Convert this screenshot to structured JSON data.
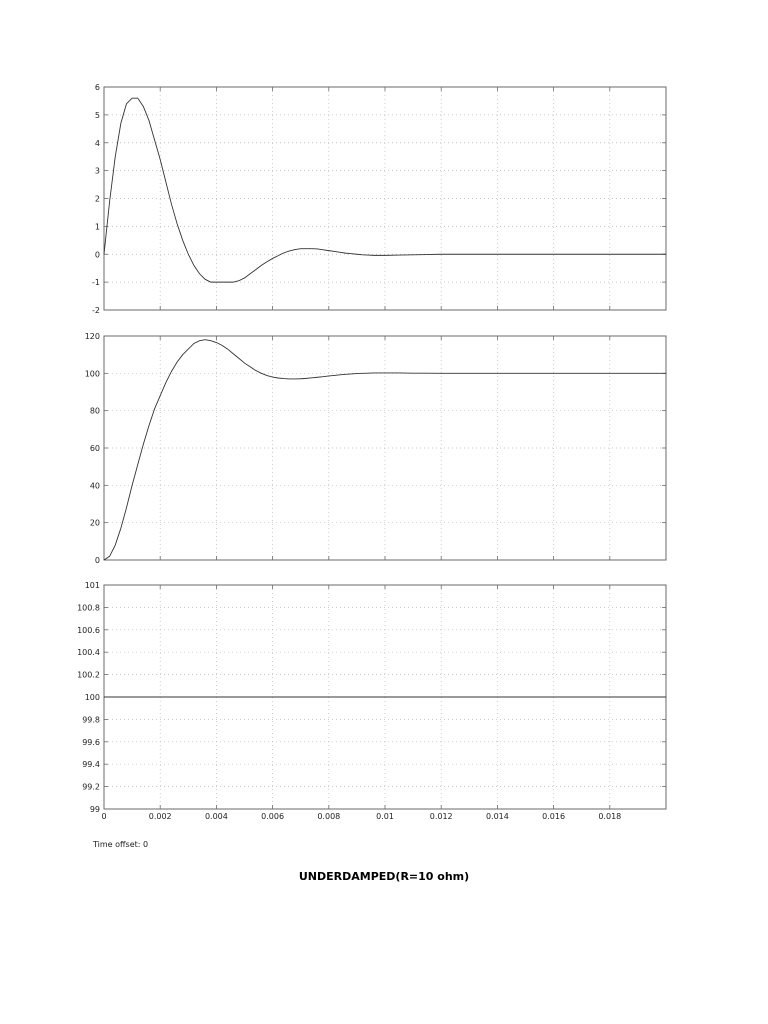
{
  "chart_data": [
    {
      "type": "line",
      "title": "",
      "xlabel": "",
      "ylabel": "",
      "xlim": [
        0,
        0.02
      ],
      "ylim": [
        -2,
        6
      ],
      "yticks": [
        -2,
        -1,
        0,
        1,
        2,
        3,
        4,
        5,
        6
      ],
      "ytick_labels": [
        "-2",
        "-1",
        "0",
        "1",
        "2",
        "3",
        "4",
        "5",
        "6"
      ],
      "grid": true,
      "series": [
        {
          "x": [
            0,
            0.0002,
            0.0004,
            0.0006,
            0.0008,
            0.001,
            0.0012,
            0.0014,
            0.0016,
            0.0018,
            0.002,
            0.0022,
            0.0024,
            0.0026,
            0.0028,
            0.003,
            0.0032,
            0.0034,
            0.0036,
            0.0038,
            0.004,
            0.0042,
            0.0044,
            0.0046,
            0.0048,
            0.005,
            0.0052,
            0.0054,
            0.0056,
            0.0058,
            0.006,
            0.0062,
            0.0064,
            0.0066,
            0.0068,
            0.007,
            0.0072,
            0.0074,
            0.0076,
            0.0078,
            0.008,
            0.0082,
            0.0084,
            0.0086,
            0.0088,
            0.009,
            0.0092,
            0.0094,
            0.0096,
            0.0098,
            0.01,
            0.0105,
            0.011,
            0.0115,
            0.012,
            0.0125,
            0.013,
            0.0135,
            0.014,
            0.015,
            0.016,
            0.017,
            0.018,
            0.019,
            0.02
          ],
          "y": [
            0,
            1.9,
            3.5,
            4.7,
            5.4,
            5.6,
            5.6,
            5.3,
            4.8,
            4.1,
            3.4,
            2.6,
            1.8,
            1.1,
            0.5,
            0,
            -0.4,
            -0.7,
            -0.9,
            -1.0,
            -1.0,
            -1.0,
            -1.0,
            -1.0,
            -0.95,
            -0.85,
            -0.7,
            -0.55,
            -0.4,
            -0.27,
            -0.15,
            -0.05,
            0.05,
            0.12,
            0.17,
            0.2,
            0.2,
            0.2,
            0.19,
            0.16,
            0.13,
            0.1,
            0.07,
            0.04,
            0.02,
            0,
            -0.02,
            -0.03,
            -0.04,
            -0.04,
            -0.04,
            -0.03,
            -0.02,
            -0.01,
            0,
            0,
            0,
            0,
            0,
            0,
            0,
            0,
            0,
            0,
            0
          ]
        }
      ]
    },
    {
      "type": "line",
      "title": "",
      "xlabel": "",
      "ylabel": "",
      "xlim": [
        0,
        0.02
      ],
      "ylim": [
        0,
        120
      ],
      "yticks": [
        0,
        20,
        40,
        60,
        80,
        100,
        120
      ],
      "ytick_labels": [
        "0",
        "20",
        "40",
        "60",
        "80",
        "100",
        "120"
      ],
      "grid": true,
      "series": [
        {
          "x": [
            0,
            0.0002,
            0.0004,
            0.0006,
            0.0008,
            0.001,
            0.0012,
            0.0014,
            0.0016,
            0.0018,
            0.002,
            0.0022,
            0.0024,
            0.0026,
            0.0028,
            0.003,
            0.0032,
            0.0034,
            0.0036,
            0.0038,
            0.004,
            0.0042,
            0.0044,
            0.0046,
            0.0048,
            0.005,
            0.0052,
            0.0054,
            0.0056,
            0.0058,
            0.006,
            0.0062,
            0.0064,
            0.0066,
            0.0068,
            0.007,
            0.0072,
            0.0074,
            0.0076,
            0.0078,
            0.008,
            0.0082,
            0.0084,
            0.0086,
            0.0088,
            0.009,
            0.0092,
            0.0094,
            0.0096,
            0.0098,
            0.01,
            0.0105,
            0.011,
            0.0115,
            0.012,
            0.0125,
            0.013,
            0.0135,
            0.014,
            0.015,
            0.016,
            0.017,
            0.018,
            0.019,
            0.02
          ],
          "y": [
            0,
            2,
            8,
            17,
            28,
            40,
            51,
            62,
            72,
            81,
            88,
            95,
            101,
            106,
            110,
            113,
            116,
            117.5,
            118,
            117.5,
            116.5,
            115,
            113,
            110.5,
            108,
            105.5,
            103.5,
            101.5,
            100,
            98.8,
            98,
            97.5,
            97.2,
            97,
            97,
            97.1,
            97.3,
            97.6,
            97.9,
            98.2,
            98.6,
            98.9,
            99.2,
            99.5,
            99.7,
            99.9,
            100,
            100.1,
            100.2,
            100.2,
            100.2,
            100.2,
            100.1,
            100.1,
            100,
            100,
            100,
            100,
            100,
            100,
            100,
            100,
            100,
            100,
            100
          ]
        }
      ]
    },
    {
      "type": "line",
      "title": "",
      "xlabel": "",
      "ylabel": "",
      "xlim": [
        0,
        0.02
      ],
      "ylim": [
        99,
        101
      ],
      "yticks": [
        99,
        99.2,
        99.4,
        99.6,
        99.8,
        100,
        100.2,
        100.4,
        100.6,
        100.8,
        101
      ],
      "ytick_labels": [
        "99",
        "99.2",
        "99.4",
        "99.6",
        "99.8",
        "100",
        "100.2",
        "100.4",
        "100.6",
        "100.8",
        "101"
      ],
      "xticks": [
        0,
        0.002,
        0.004,
        0.006,
        0.008,
        0.01,
        0.012,
        0.014,
        0.016,
        0.018
      ],
      "xtick_labels": [
        "0",
        "0.002",
        "0.004",
        "0.006",
        "0.008",
        "0.01",
        "0.012",
        "0.014",
        "0.016",
        "0.018"
      ],
      "grid": true,
      "series": [
        {
          "x": [
            0,
            0.02
          ],
          "y": [
            100,
            100
          ]
        }
      ]
    }
  ],
  "time_offset": "Time offset: 0",
  "caption": "UNDERDAMPED(R=10 ohm)"
}
